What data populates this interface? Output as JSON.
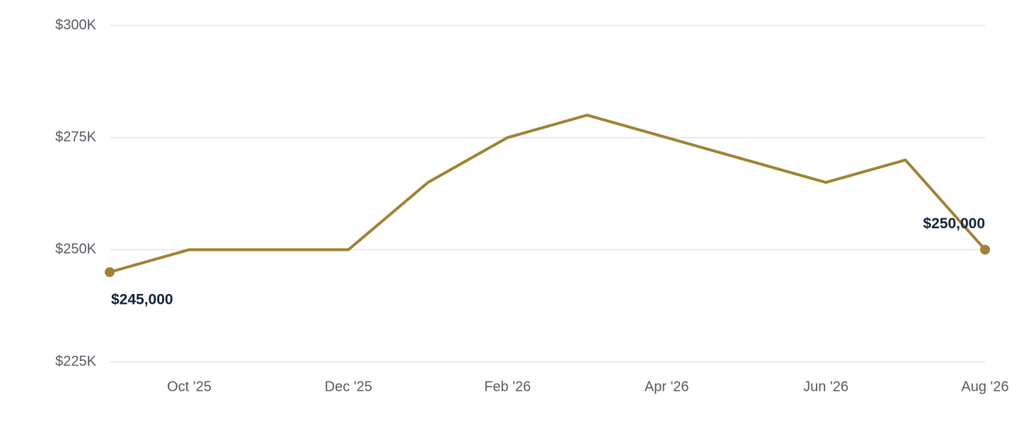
{
  "chart_data": {
    "type": "line",
    "categories": [
      null,
      "Oct '25",
      null,
      "Dec '25",
      null,
      "Feb '26",
      null,
      "Apr '26",
      null,
      "Jun '26",
      null,
      "Aug '26"
    ],
    "series": [
      {
        "color": "#a08232",
        "values": [
          245000,
          250000,
          250000,
          250000,
          265000,
          275000,
          280000,
          275000,
          270000,
          265000,
          270000,
          250000
        ],
        "value_labels": [
          "$245,000",
          null,
          null,
          null,
          null,
          null,
          null,
          null,
          null,
          null,
          null,
          "$250,000"
        ]
      }
    ],
    "ylim": [
      225000,
      300000
    ],
    "yticks": [
      {
        "value": 225000,
        "label": "$225K"
      },
      {
        "value": 250000,
        "label": "$250K"
      },
      {
        "value": 275000,
        "label": "$275K"
      },
      {
        "value": 300000,
        "label": "$300K"
      }
    ],
    "grid": true
  }
}
